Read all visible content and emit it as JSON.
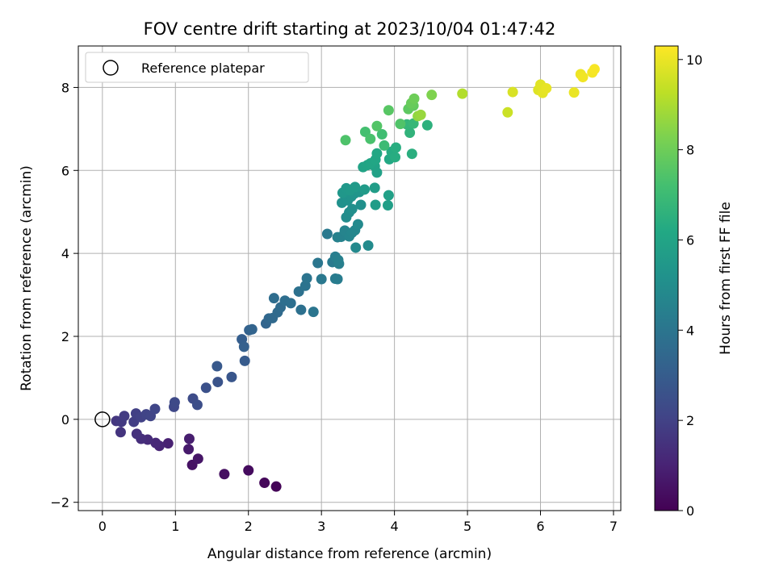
{
  "chart_data": {
    "type": "scatter",
    "title": "FOV centre drift starting at 2023/10/04 01:47:42",
    "xlabel": "Angular distance from reference (arcmin)",
    "ylabel": "Rotation from reference (arcmin)",
    "xlim": [
      -0.33,
      7.1
    ],
    "ylim": [
      -2.2,
      9.0
    ],
    "xticks": [
      "0",
      "1",
      "2",
      "3",
      "4",
      "5",
      "6",
      "7"
    ],
    "yticks": [
      "−2",
      "0",
      "2",
      "4",
      "6",
      "8"
    ],
    "grid": true,
    "legend": {
      "placement": "top-left",
      "entries": [
        "Reference platepar"
      ]
    },
    "colorbar": {
      "label": "Hours from first FF file",
      "colormap": "viridis",
      "range": [
        0,
        10.3
      ],
      "ticks": [
        "0",
        "2",
        "4",
        "6",
        "8",
        "10"
      ]
    },
    "reference": {
      "x": 0,
      "y": 0
    },
    "series": [
      {
        "points": [
          [
            2.38,
            -1.62,
            0.1
          ],
          [
            2.22,
            -1.53,
            0.2
          ],
          [
            2.0,
            -1.23,
            0.3
          ],
          [
            1.67,
            -1.32,
            0.4
          ],
          [
            1.23,
            -1.1,
            0.5
          ],
          [
            1.31,
            -0.95,
            0.6
          ],
          [
            1.18,
            -0.72,
            0.75
          ],
          [
            1.19,
            -0.47,
            0.85
          ],
          [
            0.9,
            -0.58,
            0.95
          ],
          [
            0.78,
            -0.64,
            1.05
          ],
          [
            0.73,
            -0.57,
            1.15
          ],
          [
            0.62,
            -0.49,
            1.25
          ],
          [
            0.53,
            -0.47,
            1.35
          ],
          [
            0.47,
            -0.35,
            1.45
          ],
          [
            0.25,
            -0.31,
            1.55
          ],
          [
            0.19,
            -0.04,
            1.65
          ],
          [
            0.26,
            -0.06,
            1.72
          ],
          [
            0.3,
            0.08,
            1.8
          ],
          [
            0.43,
            -0.06,
            1.87
          ],
          [
            0.46,
            0.14,
            1.92
          ],
          [
            0.53,
            0.05,
            1.98
          ],
          [
            0.6,
            0.12,
            2.05
          ],
          [
            0.66,
            0.08,
            2.1
          ],
          [
            0.72,
            0.25,
            2.15
          ],
          [
            0.98,
            0.3,
            2.2
          ],
          [
            0.99,
            0.41,
            2.28
          ],
          [
            1.24,
            0.5,
            2.35
          ],
          [
            1.3,
            0.35,
            2.45
          ],
          [
            1.42,
            0.76,
            2.55
          ],
          [
            1.58,
            0.9,
            2.65
          ],
          [
            1.77,
            1.02,
            2.75
          ],
          [
            1.57,
            1.28,
            2.85
          ],
          [
            1.95,
            1.41,
            2.95
          ],
          [
            1.91,
            1.93,
            3.05
          ],
          [
            1.94,
            1.75,
            3.12
          ],
          [
            2.01,
            2.15,
            3.2
          ],
          [
            2.05,
            2.17,
            3.28
          ],
          [
            2.24,
            2.31,
            3.35
          ],
          [
            2.28,
            2.43,
            3.42
          ],
          [
            2.33,
            2.44,
            3.5
          ],
          [
            2.4,
            2.58,
            3.55
          ],
          [
            2.44,
            2.7,
            3.6
          ],
          [
            2.35,
            2.92,
            3.65
          ],
          [
            2.5,
            2.86,
            3.7
          ],
          [
            2.58,
            2.8,
            3.75
          ],
          [
            2.72,
            2.64,
            3.8
          ],
          [
            2.69,
            3.08,
            3.85
          ],
          [
            2.78,
            3.22,
            3.9
          ],
          [
            2.8,
            3.4,
            3.95
          ],
          [
            2.89,
            2.59,
            4.0
          ],
          [
            2.95,
            3.77,
            4.05
          ],
          [
            3.0,
            3.38,
            4.1
          ],
          [
            3.08,
            4.47,
            4.15
          ],
          [
            3.15,
            3.79,
            4.2
          ],
          [
            3.19,
            3.39,
            4.25
          ],
          [
            3.22,
            3.38,
            4.3
          ],
          [
            3.19,
            3.92,
            4.35
          ],
          [
            3.24,
            3.75,
            4.4
          ],
          [
            3.23,
            3.84,
            4.45
          ],
          [
            3.22,
            4.39,
            4.5
          ],
          [
            3.27,
            4.4,
            4.55
          ],
          [
            3.32,
            4.55,
            4.6
          ],
          [
            3.38,
            4.41,
            4.65
          ],
          [
            3.42,
            4.5,
            4.7
          ],
          [
            3.46,
            4.56,
            4.75
          ],
          [
            3.47,
            4.14,
            4.8
          ],
          [
            3.5,
            4.7,
            4.85
          ],
          [
            3.64,
            4.19,
            4.9
          ],
          [
            3.34,
            4.87,
            4.95
          ],
          [
            3.38,
            4.99,
            5.0
          ],
          [
            3.42,
            5.07,
            5.05
          ],
          [
            3.54,
            5.17,
            5.1
          ],
          [
            3.28,
            5.22,
            5.15
          ],
          [
            3.36,
            5.28,
            5.2
          ],
          [
            3.41,
            5.37,
            5.25
          ],
          [
            3.45,
            5.44,
            5.3
          ],
          [
            3.52,
            5.48,
            5.35
          ],
          [
            3.29,
            5.46,
            5.4
          ],
          [
            3.34,
            5.57,
            5.45
          ],
          [
            3.39,
            5.52,
            5.5
          ],
          [
            3.46,
            5.6,
            5.55
          ],
          [
            3.59,
            5.54,
            5.6
          ],
          [
            3.74,
            5.17,
            5.65
          ],
          [
            3.73,
            5.58,
            5.7
          ],
          [
            3.91,
            5.16,
            5.75
          ],
          [
            3.92,
            5.4,
            5.8
          ],
          [
            3.76,
            5.95,
            5.85
          ],
          [
            3.73,
            6.1,
            5.9
          ],
          [
            3.57,
            6.08,
            5.95
          ],
          [
            3.63,
            6.13,
            6.0
          ],
          [
            3.67,
            6.17,
            6.05
          ],
          [
            3.74,
            6.26,
            6.1
          ],
          [
            3.76,
            6.41,
            6.15
          ],
          [
            3.93,
            6.27,
            6.2
          ],
          [
            3.96,
            6.45,
            6.3
          ],
          [
            4.01,
            6.32,
            6.35
          ],
          [
            4.02,
            6.55,
            6.4
          ],
          [
            4.24,
            6.4,
            6.45
          ],
          [
            4.45,
            7.09,
            6.55
          ],
          [
            4.21,
            6.91,
            6.65
          ],
          [
            4.17,
            7.11,
            6.75
          ],
          [
            4.26,
            7.13,
            6.85
          ],
          [
            3.86,
            6.6,
            7.0
          ],
          [
            3.83,
            6.87,
            7.1
          ],
          [
            3.6,
            6.93,
            7.2
          ],
          [
            3.67,
            6.76,
            7.3
          ],
          [
            3.33,
            6.73,
            7.4
          ],
          [
            4.08,
            7.12,
            7.45
          ],
          [
            3.76,
            7.07,
            7.5
          ],
          [
            3.92,
            7.45,
            7.6
          ],
          [
            4.19,
            7.48,
            7.7
          ],
          [
            4.26,
            7.56,
            7.8
          ],
          [
            4.23,
            7.62,
            7.9
          ],
          [
            4.27,
            7.73,
            8.0
          ],
          [
            4.51,
            7.82,
            8.3
          ],
          [
            4.32,
            7.31,
            8.6
          ],
          [
            4.36,
            7.34,
            8.7
          ],
          [
            4.93,
            7.85,
            9.1
          ],
          [
            5.55,
            7.4,
            9.5
          ],
          [
            5.62,
            7.89,
            9.7
          ],
          [
            5.97,
            7.94,
            9.8
          ],
          [
            6.0,
            8.07,
            9.85
          ],
          [
            6.03,
            7.87,
            9.9
          ],
          [
            6.08,
            7.98,
            9.95
          ],
          [
            6.46,
            7.88,
            10.0
          ],
          [
            6.55,
            8.32,
            10.05
          ],
          [
            6.58,
            8.25,
            10.1
          ],
          [
            6.71,
            8.36,
            10.15
          ],
          [
            6.74,
            8.44,
            10.2
          ]
        ]
      }
    ]
  }
}
